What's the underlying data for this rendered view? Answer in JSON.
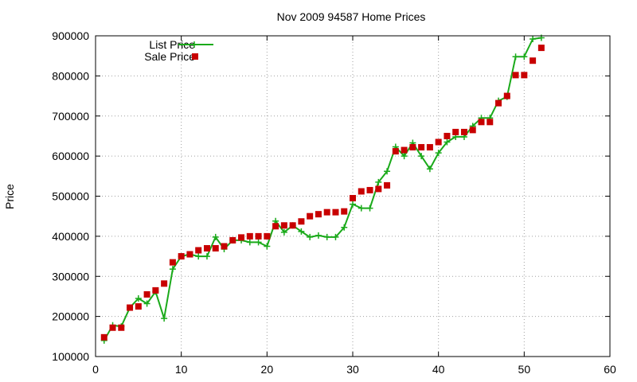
{
  "chart_data": {
    "type": "line",
    "title": "Nov 2009 94587 Home Prices",
    "xlabel": "",
    "ylabel": "Price",
    "xlim": [
      0,
      60
    ],
    "ylim": [
      100000,
      900000
    ],
    "xticks": [
      0,
      10,
      20,
      30,
      40,
      50,
      60
    ],
    "yticks": [
      100000,
      200000,
      300000,
      400000,
      500000,
      600000,
      700000,
      800000,
      900000
    ],
    "grid": true,
    "grid_color": "#a0a0a0",
    "legend_position": "top-left",
    "series": [
      {
        "name": "List Price",
        "style": "line-with-plus-markers",
        "color": "#1aaa1a",
        "x": [
          1,
          2,
          3,
          4,
          5,
          6,
          7,
          8,
          9,
          10,
          11,
          12,
          13,
          14,
          15,
          16,
          17,
          18,
          19,
          20,
          21,
          22,
          23,
          24,
          25,
          26,
          27,
          28,
          29,
          30,
          31,
          32,
          33,
          34,
          35,
          36,
          37,
          38,
          39,
          40,
          41,
          42,
          43,
          44,
          45,
          46,
          47,
          48,
          49,
          50,
          51,
          52
        ],
        "y": [
          140000,
          178000,
          175000,
          222000,
          245000,
          232000,
          262000,
          195000,
          318000,
          350000,
          355000,
          350000,
          350000,
          398000,
          368000,
          390000,
          390000,
          385000,
          385000,
          375000,
          438000,
          410000,
          427000,
          412000,
          398000,
          402000,
          398000,
          398000,
          422000,
          480000,
          470000,
          470000,
          535000,
          562000,
          623000,
          600000,
          633000,
          600000,
          568000,
          608000,
          635000,
          648000,
          648000,
          675000,
          695000,
          695000,
          738000,
          748000,
          848000,
          848000,
          892000,
          895000
        ]
      },
      {
        "name": "Sale Price",
        "style": "square-markers",
        "color": "#c80000",
        "x": [
          1,
          2,
          3,
          4,
          5,
          6,
          7,
          8,
          9,
          10,
          11,
          12,
          13,
          14,
          15,
          16,
          17,
          18,
          19,
          20,
          21,
          22,
          23,
          24,
          25,
          26,
          27,
          28,
          29,
          30,
          31,
          32,
          33,
          34,
          35,
          36,
          37,
          38,
          39,
          40,
          41,
          42,
          43,
          44,
          45,
          46,
          47,
          48,
          49,
          50,
          51,
          52
        ],
        "y": [
          148000,
          172000,
          172000,
          222000,
          225000,
          255000,
          265000,
          282000,
          335000,
          350000,
          355000,
          365000,
          370000,
          370000,
          375000,
          390000,
          397000,
          400000,
          400000,
          400000,
          425000,
          427000,
          427000,
          437000,
          450000,
          455000,
          460000,
          460000,
          462000,
          495000,
          512000,
          515000,
          518000,
          527000,
          612000,
          615000,
          622000,
          622000,
          622000,
          635000,
          650000,
          660000,
          660000,
          665000,
          685000,
          685000,
          732000,
          750000,
          802000,
          802000,
          838000,
          870000
        ]
      }
    ]
  }
}
